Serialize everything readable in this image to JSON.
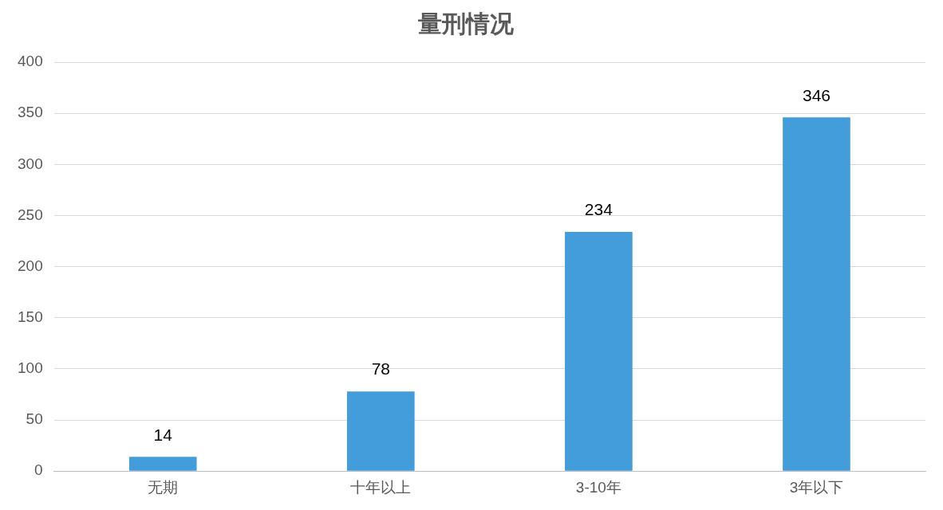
{
  "chart_data": {
    "type": "bar",
    "title": "量刑情况",
    "categories": [
      "无期",
      "十年以上",
      "3-10年",
      "3年以下"
    ],
    "values": [
      14,
      78,
      234,
      346
    ],
    "color": "#449ddb",
    "ylim": [
      0,
      400
    ],
    "yticks": [
      0,
      50,
      100,
      150,
      200,
      250,
      300,
      350,
      400
    ],
    "grid": "y",
    "legend": false,
    "data_labels": true
  }
}
